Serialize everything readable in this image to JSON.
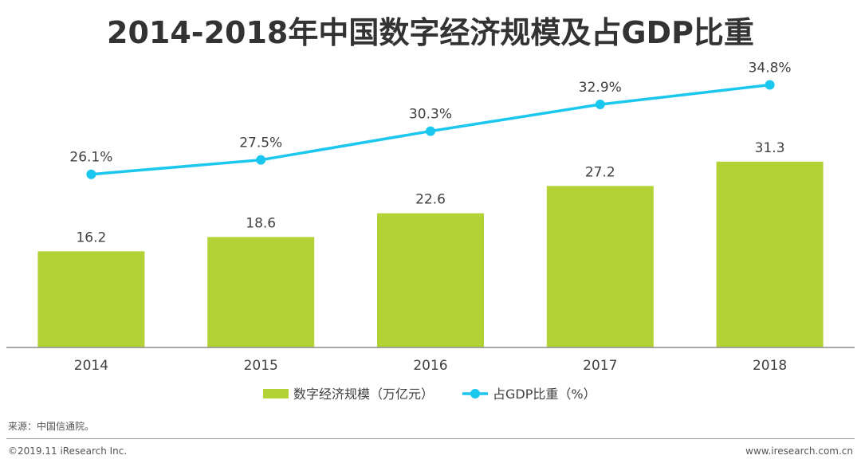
{
  "title": "2014-2018年中国数字经济规模及占GDP比重",
  "source_note": "来源：中国信通院。",
  "copyright": "©2019.11 iResearch Inc.",
  "website": "www.iresearch.com.cn",
  "colors": {
    "bar": "#b2d235",
    "line": "#1cc7ef"
  },
  "chart_data": {
    "type": "bar",
    "categories": [
      "2014",
      "2015",
      "2016",
      "2017",
      "2018"
    ],
    "series": [
      {
        "name": "数字经济规模（万亿元）",
        "type": "bar",
        "values": [
          16.2,
          18.6,
          22.6,
          27.2,
          31.3
        ],
        "labels": [
          "16.2",
          "18.6",
          "22.6",
          "27.2",
          "31.3"
        ]
      },
      {
        "name": "占GDP比重（%）",
        "type": "line",
        "values": [
          26.1,
          27.5,
          30.3,
          32.9,
          34.8
        ],
        "labels": [
          "26.1%",
          "27.5%",
          "30.3%",
          "32.9%",
          "34.8%"
        ]
      }
    ],
    "legend_position": "bottom",
    "grid": false
  }
}
